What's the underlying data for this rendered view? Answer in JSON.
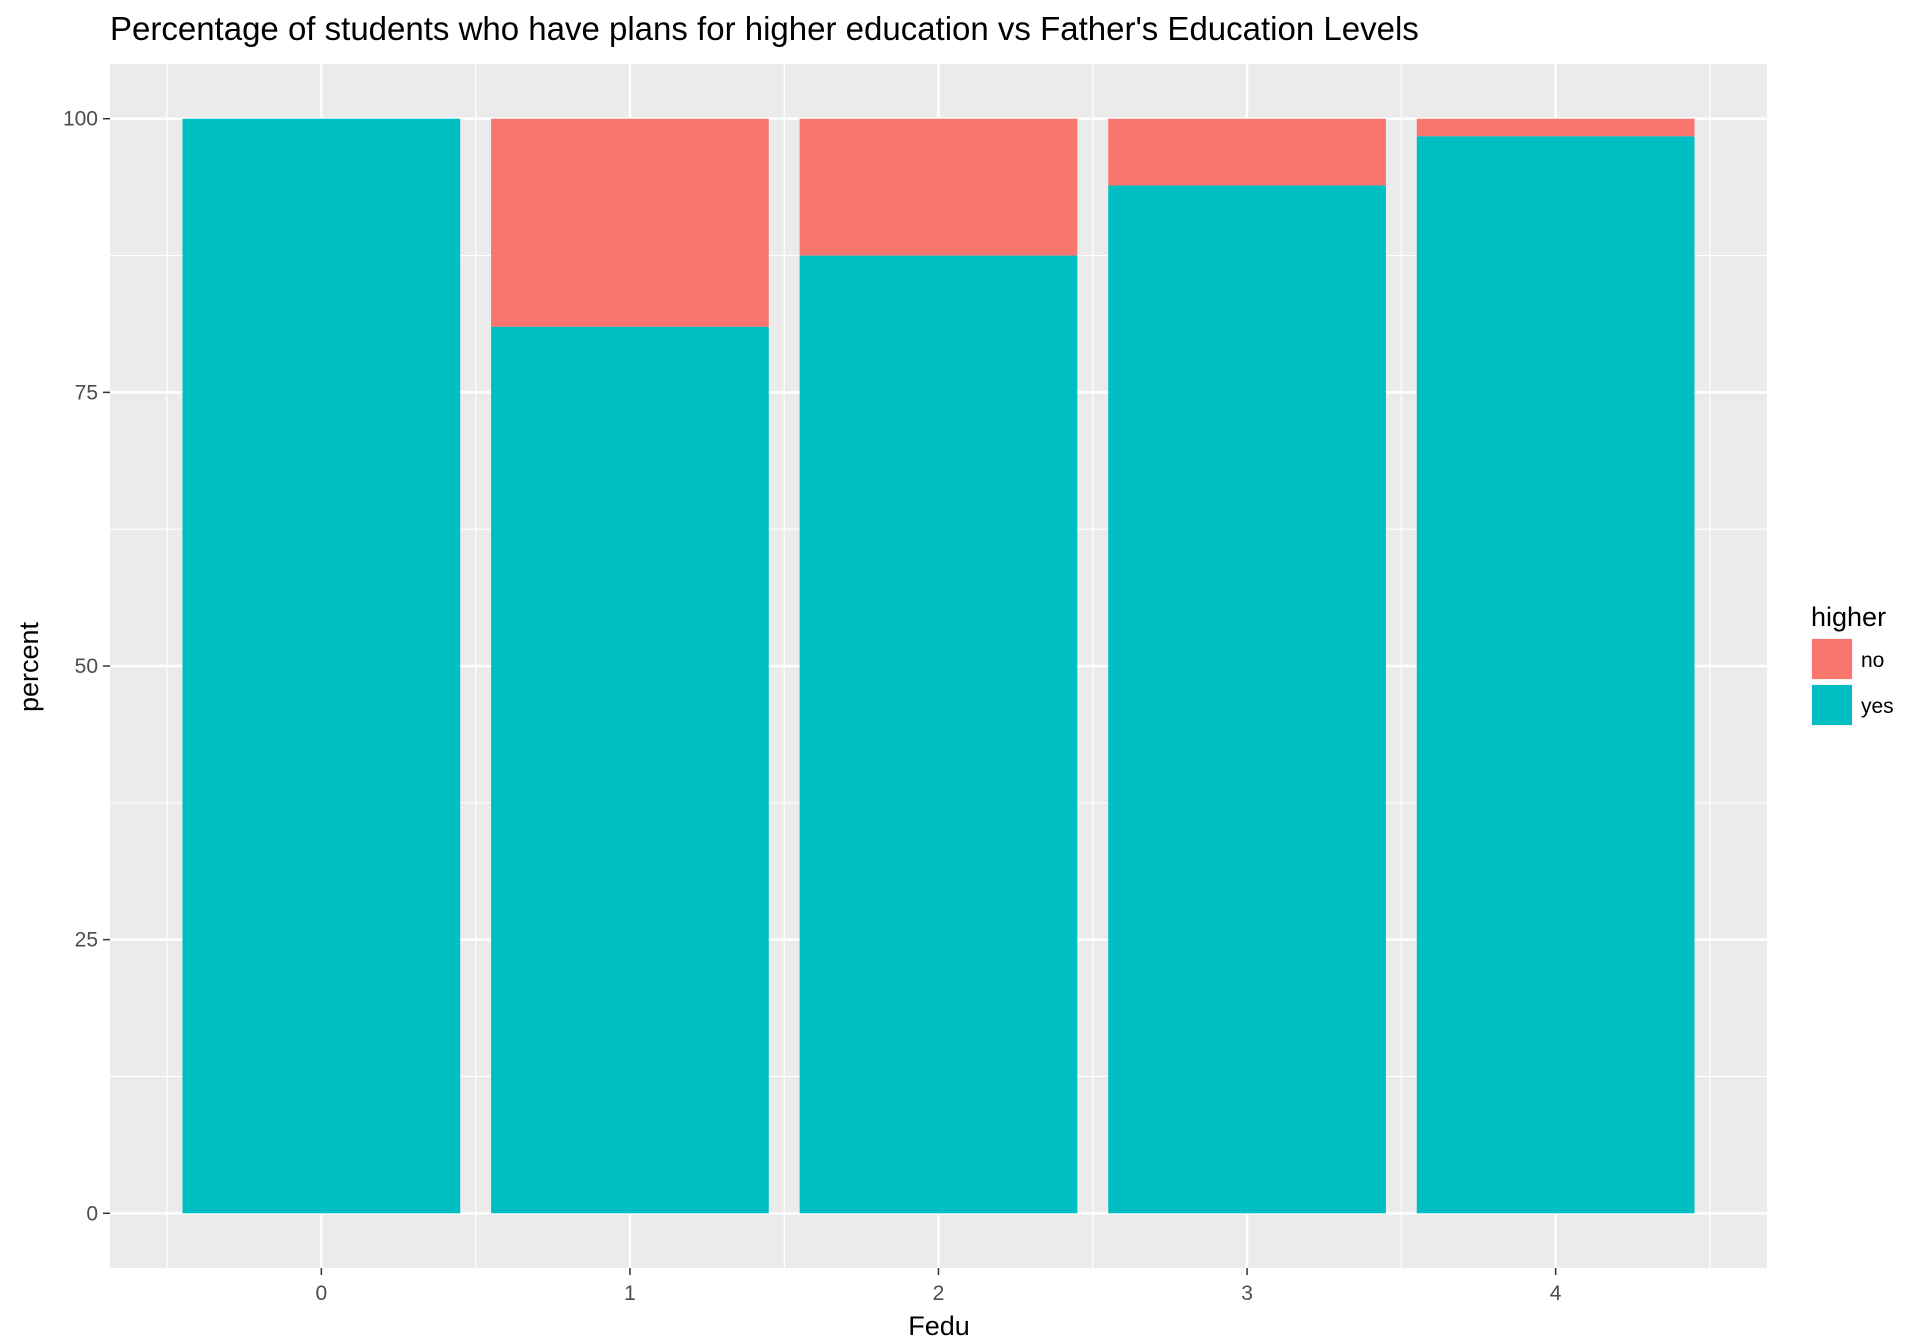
{
  "chart_data": {
    "type": "bar",
    "stacked": true,
    "title": "Percentage of students who have plans for higher education vs Father's Education Levels",
    "xlabel": "Fedu",
    "ylabel": "percent",
    "categories": [
      "0",
      "1",
      "2",
      "3",
      "4"
    ],
    "series": [
      {
        "name": "no",
        "color": "#F8766D",
        "values": [
          0,
          19.0,
          12.5,
          6.1,
          1.6
        ]
      },
      {
        "name": "yes",
        "color": "#00BFC4",
        "values": [
          100,
          81.0,
          87.5,
          93.9,
          98.4
        ]
      }
    ],
    "ylim": [
      -5,
      105
    ],
    "yticks": [
      "0",
      "25",
      "50",
      "75",
      "100"
    ],
    "grid": true,
    "legend": {
      "title": "higher",
      "position": "right"
    },
    "panel_background": "#EBEBEB",
    "gridline_color": "#FFFFFF"
  }
}
